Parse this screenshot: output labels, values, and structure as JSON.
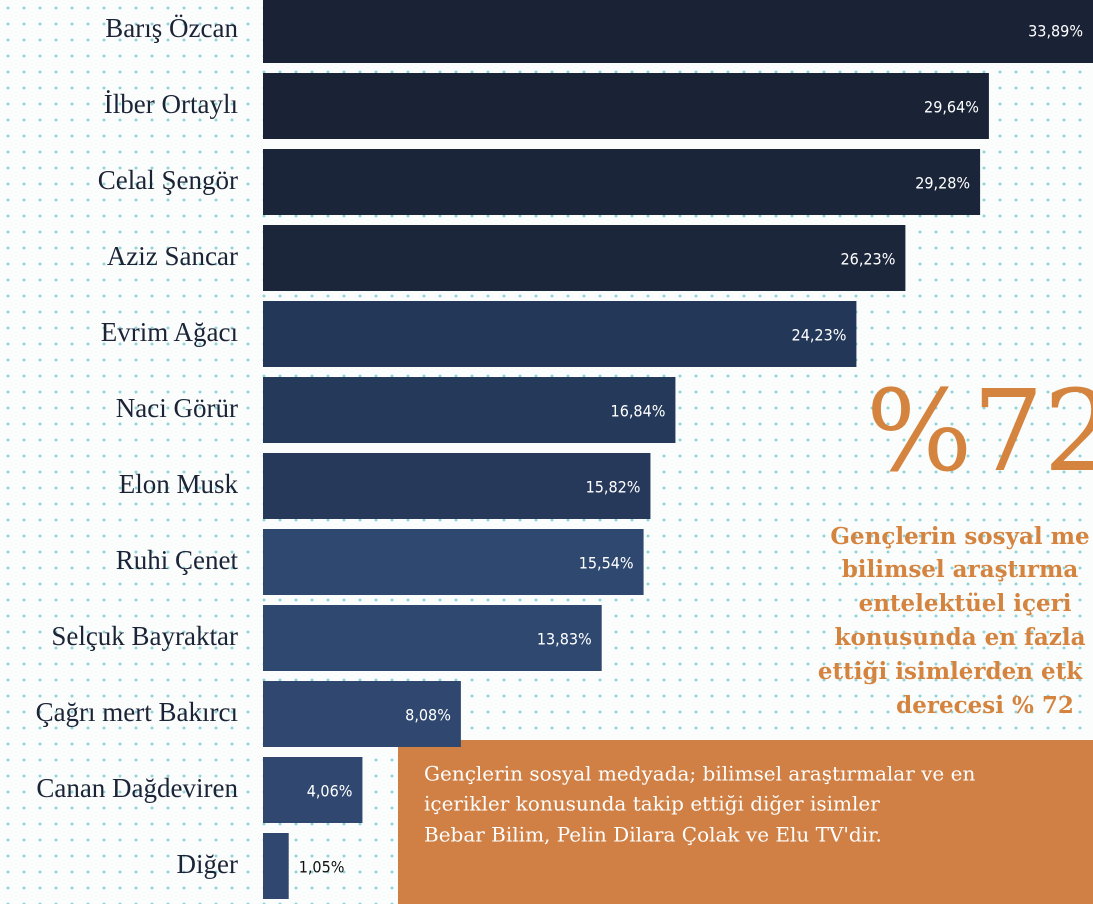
{
  "chart_data": {
    "type": "bar",
    "orientation": "horizontal",
    "categories": [
      "Barış Özcan",
      "İlber Ortaylı",
      "Celal Şengör",
      "Aziz Sancar",
      "Evrim Ağacı",
      "Naci Görür",
      "Elon Musk",
      "Ruhi Çenet",
      "Selçuk Bayraktar",
      "Çağrı mert Bakırcı",
      "Canan Dağdeviren",
      "Diğer"
    ],
    "values": [
      33.89,
      29.64,
      29.28,
      26.23,
      24.23,
      16.84,
      15.82,
      15.54,
      13.83,
      8.08,
      4.06,
      1.05
    ],
    "value_labels": [
      "33,89%",
      "29,64%",
      "29,28%",
      "26,23%",
      "24,23%",
      "16,84%",
      "15,82%",
      "15,54%",
      "13,83%",
      "8,08%",
      "4,06%",
      "1,05%"
    ],
    "colors": [
      "#1a2336",
      "#1a2336",
      "#1b2539",
      "#1c263b",
      "#233858",
      "#25395a",
      "#27395b",
      "#2f4870",
      "#2f4870",
      "#30486f",
      "#30486f",
      "#30486f"
    ],
    "xlim": [
      0,
      33.89
    ],
    "highlight": "%72",
    "highlight_text": [
      "Gençlerin sosyal me",
      "bilimsel araştırma",
      "entelektüel içeri",
      "konusunda en fazla",
      "ettiği isimlerden etk",
      "derecesi % 72"
    ],
    "note": [
      "Gençlerin sosyal medyada; bilimsel araştırmalar ve en",
      "içerikler konusunda takip ettiği diğer isimler",
      "Bebar Bilim, Pelin Dilara Çolak ve Elu TV'dir."
    ]
  }
}
